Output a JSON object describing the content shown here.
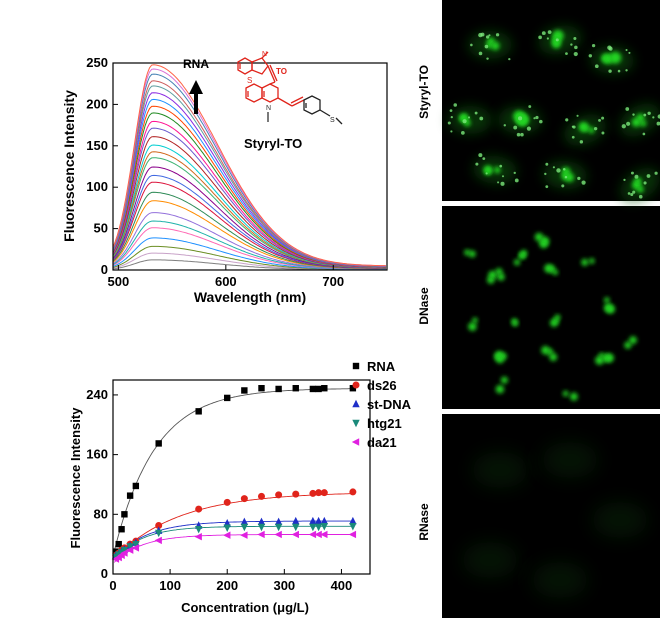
{
  "figure": {
    "molecule_label": "Styryl-TO",
    "molecule_annotation": "TO",
    "arrow_label": "RNA",
    "panel_labels": [
      "Styryl-TO",
      "DNase",
      "RNase"
    ],
    "colors": {
      "molecule": "#e0241b",
      "cell_green": "#22d322",
      "arrow": "#000000"
    }
  },
  "chart_data": [
    {
      "type": "line",
      "xlabel": "Wavelength (nm)",
      "ylabel": "Fluorescence Intensity",
      "xlim": [
        495,
        750
      ],
      "ylim": [
        0,
        250
      ],
      "xticks": [
        500,
        600,
        700
      ],
      "yticks": [
        0,
        50,
        100,
        150,
        200,
        250
      ],
      "peak_wavelength": 532,
      "peak_intensities": [
        12,
        20,
        28,
        38,
        50,
        58,
        68,
        82,
        92,
        104,
        112,
        122,
        133,
        140,
        148,
        158,
        168,
        176,
        186,
        194,
        202,
        210,
        218,
        224,
        232,
        238,
        243
      ],
      "grid": false
    },
    {
      "type": "scatter",
      "xlabel": "Concentration (μg/L)",
      "ylabel": "Fluorescence Intensity",
      "xlim": [
        0,
        450
      ],
      "ylim": [
        0,
        260
      ],
      "xticks": [
        0,
        100,
        200,
        300,
        400
      ],
      "yticks": [
        0,
        80,
        160,
        240
      ],
      "legend_position": "top-right",
      "series": [
        {
          "name": "RNA",
          "color": "#000000",
          "marker": "square",
          "x": [
            5,
            10,
            15,
            20,
            30,
            40,
            80,
            150,
            200,
            230,
            260,
            290,
            320,
            350,
            360,
            370,
            420
          ],
          "y": [
            30,
            40,
            60,
            80,
            105,
            118,
            175,
            218,
            236,
            246,
            249,
            248,
            249,
            248,
            248,
            249,
            249
          ]
        },
        {
          "name": "ds26",
          "color": "#e0241b",
          "marker": "circle",
          "x": [
            5,
            10,
            15,
            20,
            30,
            40,
            80,
            150,
            200,
            230,
            260,
            290,
            320,
            350,
            360,
            370,
            420
          ],
          "y": [
            25,
            28,
            32,
            35,
            40,
            44,
            65,
            87,
            96,
            101,
            104,
            106,
            107,
            108,
            109,
            109,
            110
          ]
        },
        {
          "name": "st-DNA",
          "color": "#1f2fc8",
          "marker": "triangle-up",
          "x": [
            5,
            10,
            15,
            20,
            30,
            40,
            80,
            150,
            200,
            230,
            260,
            290,
            320,
            350,
            360,
            370,
            420
          ],
          "y": [
            25,
            27,
            30,
            33,
            38,
            42,
            58,
            65,
            68,
            70,
            70,
            70,
            71,
            71,
            71,
            71,
            71
          ]
        },
        {
          "name": "htg21",
          "color": "#1a8a7a",
          "marker": "triangle-down",
          "x": [
            5,
            10,
            15,
            20,
            30,
            40,
            80,
            150,
            200,
            230,
            260,
            290,
            320,
            350,
            360,
            370,
            420
          ],
          "y": [
            23,
            26,
            29,
            32,
            37,
            40,
            55,
            60,
            62,
            63,
            63,
            63,
            63,
            63,
            63,
            64,
            64
          ]
        },
        {
          "name": "da21",
          "color": "#e020e0",
          "marker": "triangle-left",
          "x": [
            5,
            10,
            15,
            20,
            30,
            40,
            80,
            150,
            200,
            230,
            260,
            290,
            320,
            350,
            360,
            370,
            420
          ],
          "y": [
            20,
            22,
            25,
            28,
            32,
            35,
            45,
            50,
            52,
            52,
            53,
            53,
            53,
            53,
            53,
            53,
            53
          ]
        }
      ]
    }
  ]
}
